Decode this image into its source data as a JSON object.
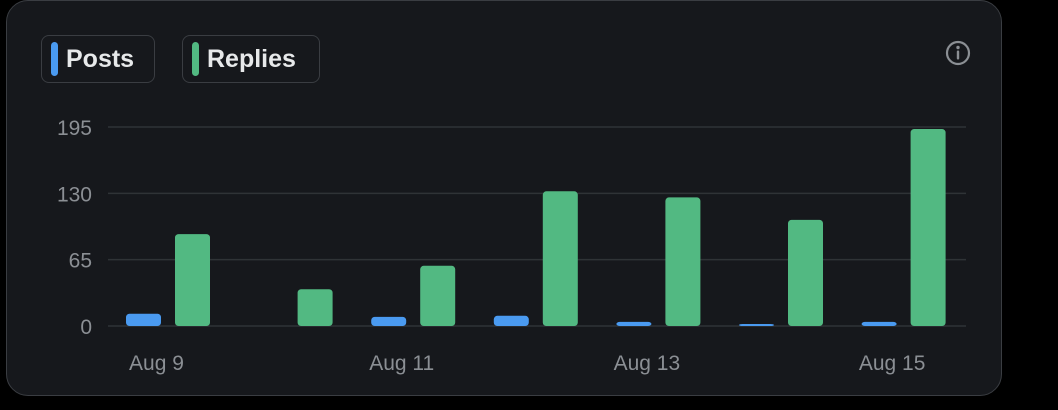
{
  "colors": {
    "posts": "#4a9af0",
    "replies": "#52b982",
    "grid": "#2f3336",
    "tick_text": "#8b8f94"
  },
  "legend": {
    "posts_label": "Posts",
    "replies_label": "Replies"
  },
  "info_icon": "info-icon",
  "chart_data": {
    "type": "bar",
    "categories": [
      "Aug 9",
      "Aug 10",
      "Aug 11",
      "Aug 12",
      "Aug 13",
      "Aug 14",
      "Aug 15"
    ],
    "x_tick_labels": [
      "Aug 9",
      "",
      "Aug 11",
      "",
      "Aug 13",
      "",
      "Aug 15"
    ],
    "series": [
      {
        "name": "Posts",
        "values": [
          12,
          0,
          9,
          10,
          4,
          2,
          4
        ]
      },
      {
        "name": "Replies",
        "values": [
          90,
          36,
          59,
          132,
          126,
          104,
          193
        ]
      }
    ],
    "y_ticks": [
      0,
      65,
      130,
      195
    ],
    "ylim": [
      0,
      195
    ],
    "grid": true,
    "legend_position": "top-left"
  }
}
